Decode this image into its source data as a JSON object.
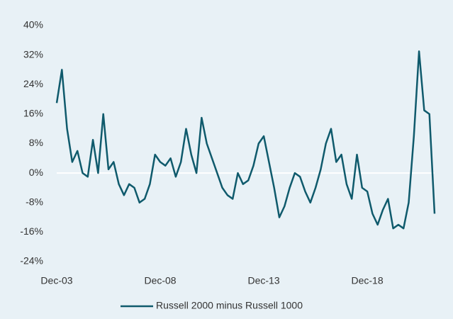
{
  "chart_data": {
    "type": "line",
    "categories": [
      "Dec-03",
      null,
      null,
      null,
      null,
      null,
      null,
      null,
      null,
      null,
      null,
      null,
      null,
      null,
      null,
      null,
      null,
      null,
      null,
      null,
      "Dec-08",
      null,
      null,
      null,
      null,
      null,
      null,
      null,
      null,
      null,
      null,
      null,
      null,
      null,
      null,
      null,
      null,
      null,
      null,
      null,
      "Dec-13",
      null,
      null,
      null,
      null,
      null,
      null,
      null,
      null,
      null,
      null,
      null,
      null,
      null,
      null,
      null,
      null,
      null,
      null,
      null,
      "Dec-18",
      null,
      null,
      null,
      null,
      null,
      null,
      null,
      null,
      null,
      null,
      null,
      null,
      null
    ],
    "series": [
      {
        "name": "Russell 2000 minus Russell 1000",
        "color": "#0f5a6c",
        "values": [
          19,
          28,
          12,
          3,
          6,
          0,
          -1,
          9,
          0,
          16,
          1,
          3,
          -3,
          -6,
          -3,
          -4,
          -8,
          -7,
          -3,
          5,
          3,
          2,
          4,
          -1,
          3,
          12,
          5,
          0,
          15,
          8,
          4,
          0,
          -4,
          -6,
          -7,
          0,
          -3,
          -2,
          2,
          8,
          10,
          3,
          -4,
          -12,
          -9,
          -4,
          0,
          -1,
          -5,
          -8,
          -4,
          1,
          8,
          12,
          3,
          5,
          -3,
          -7,
          5,
          -4,
          -5,
          -11,
          -14,
          -10,
          -7,
          -15,
          -14,
          -15,
          -8,
          10,
          33,
          17,
          16,
          -11
        ]
      }
    ],
    "ylim": [
      -24,
      40
    ],
    "yticks": [
      {
        "value": -24,
        "label": "-24%"
      },
      {
        "value": -16,
        "label": "-16%"
      },
      {
        "value": -8,
        "label": "-8%"
      },
      {
        "value": 0,
        "label": "0%"
      },
      {
        "value": 8,
        "label": "8%"
      },
      {
        "value": 16,
        "label": "16%"
      },
      {
        "value": 24,
        "label": "24%"
      },
      {
        "value": 32,
        "label": "32%"
      },
      {
        "value": 40,
        "label": "40%"
      }
    ],
    "grid": false,
    "background": "#e8f1f6",
    "legend": "bottom"
  }
}
